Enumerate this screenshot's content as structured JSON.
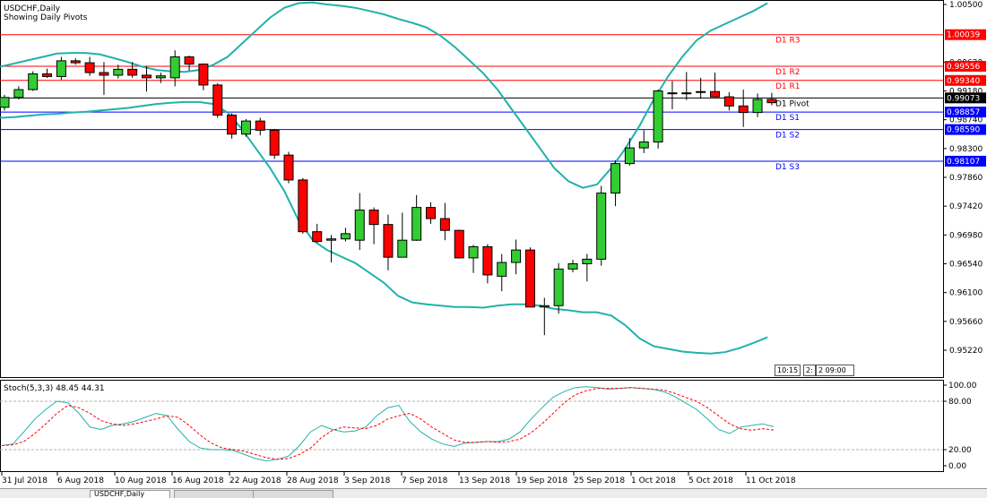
{
  "window": {
    "symbol_title": "USDCHF,Daily",
    "indicator_title": "Showing Daily Pivots"
  },
  "price_axis": {
    "labels": [
      "1.00500",
      "0.99620",
      "0.99180",
      "0.98740",
      "0.98300",
      "0.97860",
      "0.97420",
      "0.96980",
      "0.96540",
      "0.96100",
      "0.95660",
      "0.95220"
    ]
  },
  "pivots": [
    {
      "name": "D1 R3",
      "value": "1.00039",
      "color": "#ff0000"
    },
    {
      "name": "D1 R2",
      "value": "0.99556",
      "color": "#ff0000"
    },
    {
      "name": "D1 R1",
      "value": "0.99340",
      "color": "#ff0000"
    },
    {
      "name": "D1 Pivot",
      "value": "0.99073",
      "color": "#000000"
    },
    {
      "name": "D1 S1",
      "value": "0.98857",
      "color": "#0000ff"
    },
    {
      "name": "D1 S2",
      "value": "0.98590",
      "color": "#0000ff"
    },
    {
      "name": "D1 S3",
      "value": "0.98107",
      "color": "#0000ff"
    }
  ],
  "time_badges": [
    "10:15",
    "2:",
    "2 09:00"
  ],
  "stochastic": {
    "label": "Stoch(5,3,3) 48.45 44.31",
    "axis_labels": [
      "100.00",
      "80.00",
      "20.00",
      "0.00"
    ]
  },
  "date_axis": [
    "31 Jul 2018",
    "6 Aug 2018",
    "10 Aug 2018",
    "16 Aug 2018",
    "22 Aug 2018",
    "28 Aug 2018",
    "3 Sep 2018",
    "7 Sep 2018",
    "13 Sep 2018",
    "19 Sep 2018",
    "25 Sep 2018",
    "1 Oct 2018",
    "5 Oct 2018",
    "11 Oct 2018"
  ],
  "tabs": [
    "USDCHF,Daily"
  ],
  "colors": {
    "bull": "#33cc33",
    "bear": "#ff0000",
    "bands": "#20b2aa",
    "stoch_main": "#20b2aa",
    "stoch_signal": "#ff0000"
  },
  "candles": [
    [
      0.9893,
      0.9912,
      0.9888,
      0.9908
    ],
    [
      0.9908,
      0.9925,
      0.9905,
      0.992
    ],
    [
      0.992,
      0.9948,
      0.9918,
      0.9944
    ],
    [
      0.9944,
      0.9952,
      0.9938,
      0.994
    ],
    [
      0.994,
      0.997,
      0.9935,
      0.9964
    ],
    [
      0.9964,
      0.9968,
      0.9958,
      0.9961
    ],
    [
      0.9961,
      0.997,
      0.9941,
      0.9946
    ],
    [
      0.9946,
      0.9962,
      0.9912,
      0.9942
    ],
    [
      0.9942,
      0.9958,
      0.9937,
      0.9951
    ],
    [
      0.9951,
      0.9962,
      0.9938,
      0.9942
    ],
    [
      0.9942,
      0.9956,
      0.9917,
      0.9938
    ],
    [
      0.9938,
      0.9946,
      0.993,
      0.9941
    ],
    [
      0.9938,
      0.998,
      0.9925,
      0.997
    ],
    [
      0.997,
      0.9972,
      0.9949,
      0.9959
    ],
    [
      0.9959,
      0.996,
      0.9919,
      0.9927
    ],
    [
      0.9927,
      0.993,
      0.9877,
      0.9881
    ],
    [
      0.9881,
      0.9884,
      0.9845,
      0.9852
    ],
    [
      0.9852,
      0.9875,
      0.9848,
      0.9872
    ],
    [
      0.9872,
      0.9877,
      0.985,
      0.9858
    ],
    [
      0.9858,
      0.986,
      0.9814,
      0.982
    ],
    [
      0.982,
      0.9825,
      0.9777,
      0.9782
    ],
    [
      0.9782,
      0.9785,
      0.97,
      0.9703
    ],
    [
      0.9703,
      0.9715,
      0.9686,
      0.9688
    ],
    [
      0.969,
      0.9698,
      0.9656,
      0.9692
    ],
    [
      0.9692,
      0.9709,
      0.9688,
      0.97
    ],
    [
      0.969,
      0.9762,
      0.9675,
      0.9736
    ],
    [
      0.9736,
      0.974,
      0.9684,
      0.9714
    ],
    [
      0.9714,
      0.9729,
      0.9644,
      0.9664
    ],
    [
      0.9664,
      0.9732,
      0.9664,
      0.969
    ],
    [
      0.969,
      0.9759,
      0.9689,
      0.974
    ],
    [
      0.974,
      0.9748,
      0.9715,
      0.9723
    ],
    [
      0.9723,
      0.9747,
      0.969,
      0.9705
    ],
    [
      0.9705,
      0.9706,
      0.9662,
      0.9663
    ],
    [
      0.9663,
      0.9683,
      0.964,
      0.968
    ],
    [
      0.968,
      0.9684,
      0.9624,
      0.9637
    ],
    [
      0.9635,
      0.9669,
      0.9612,
      0.9656
    ],
    [
      0.9656,
      0.9691,
      0.9638,
      0.9675
    ],
    [
      0.9675,
      0.9679,
      0.9588,
      0.9588
    ],
    [
      0.9588,
      0.9602,
      0.9545,
      0.959
    ],
    [
      0.959,
      0.9655,
      0.9578,
      0.9646
    ],
    [
      0.9646,
      0.966,
      0.9641,
      0.9654
    ],
    [
      0.9654,
      0.9669,
      0.9627,
      0.9661
    ],
    [
      0.9661,
      0.9773,
      0.9651,
      0.9762
    ],
    [
      0.9762,
      0.9812,
      0.9742,
      0.9807
    ],
    [
      0.9807,
      0.9846,
      0.9804,
      0.9831
    ],
    [
      0.9831,
      0.9858,
      0.9823,
      0.984
    ],
    [
      0.984,
      0.992,
      0.983,
      0.9918
    ],
    [
      0.9915,
      0.9933,
      0.989,
      0.9914
    ],
    [
      0.9914,
      0.9947,
      0.9904,
      0.9915
    ],
    [
      0.9916,
      0.9938,
      0.9906,
      0.9917
    ],
    [
      0.9917,
      0.9946,
      0.9908,
      0.9909
    ],
    [
      0.9909,
      0.9916,
      0.9888,
      0.9895
    ],
    [
      0.9895,
      0.992,
      0.9863,
      0.9885
    ],
    [
      0.9885,
      0.9914,
      0.9878,
      0.9905
    ],
    [
      0.9905,
      0.9915,
      0.9896,
      0.99
    ]
  ],
  "bb_upper": [
    0.9955,
    0.996,
    0.9965,
    0.997,
    0.9975,
    0.9976,
    0.9976,
    0.9974,
    0.9968,
    0.9962,
    0.9955,
    0.995,
    0.9948,
    0.9947,
    0.995,
    0.9958,
    0.997,
    0.999,
    1.001,
    1.003,
    1.0045,
    1.0052,
    1.0053,
    1.005,
    1.0048,
    1.0045,
    1.004,
    1.0035,
    1.0028,
    1.0022,
    1.0015,
    1.0002,
    0.9985,
    0.9965,
    0.9945,
    0.992,
    0.989,
    0.986,
    0.983,
    0.98,
    0.978,
    0.977,
    0.9775,
    0.98,
    0.983,
    0.9865,
    0.9905,
    0.994,
    0.997,
    0.9995,
    1.001,
    1.002,
    1.003,
    1.004,
    1.0052
  ],
  "bb_lower": [
    0.9877,
    0.9878,
    0.988,
    0.9882,
    0.9883,
    0.9885,
    0.9886,
    0.9888,
    0.989,
    0.9892,
    0.9895,
    0.9898,
    0.99,
    0.9901,
    0.9901,
    0.9898,
    0.9885,
    0.986,
    0.983,
    0.98,
    0.9765,
    0.972,
    0.969,
    0.9675,
    0.9665,
    0.9655,
    0.964,
    0.9625,
    0.9605,
    0.9595,
    0.9592,
    0.959,
    0.9588,
    0.9588,
    0.9587,
    0.959,
    0.9592,
    0.9592,
    0.959,
    0.9585,
    0.9583,
    0.958,
    0.958,
    0.9575,
    0.956,
    0.954,
    0.9528,
    0.9524,
    0.952,
    0.9518,
    0.9517,
    0.9519,
    0.9525,
    0.9533,
    0.9542
  ],
  "stoch_main": [
    25,
    27,
    42,
    58,
    70,
    80,
    78,
    65,
    48,
    45,
    50,
    52,
    55,
    60,
    65,
    62,
    45,
    30,
    22,
    20,
    20,
    19,
    14,
    9,
    6,
    8,
    12,
    25,
    42,
    50,
    45,
    42,
    43,
    48,
    62,
    72,
    75,
    55,
    42,
    33,
    27,
    24,
    28,
    29,
    30,
    30,
    33,
    42,
    58,
    72,
    85,
    92,
    97,
    98,
    97,
    95,
    96,
    97,
    96,
    95,
    92,
    86,
    78,
    70,
    58,
    45,
    40,
    48,
    50,
    52,
    48.45
  ],
  "stoch_signal": [
    25,
    26,
    30,
    40,
    52,
    65,
    75,
    72,
    65,
    56,
    52,
    50,
    52,
    55,
    58,
    62,
    60,
    50,
    38,
    28,
    22,
    20,
    18,
    14,
    10,
    8,
    9,
    14,
    22,
    35,
    44,
    48,
    47,
    46,
    50,
    58,
    62,
    65,
    58,
    48,
    40,
    32,
    29,
    29,
    30,
    29,
    30,
    33,
    41,
    52,
    65,
    78,
    88,
    93,
    96,
    96,
    96,
    97,
    96,
    95,
    94,
    90,
    85,
    80,
    72,
    62,
    52,
    46,
    44,
    46,
    44.31
  ]
}
